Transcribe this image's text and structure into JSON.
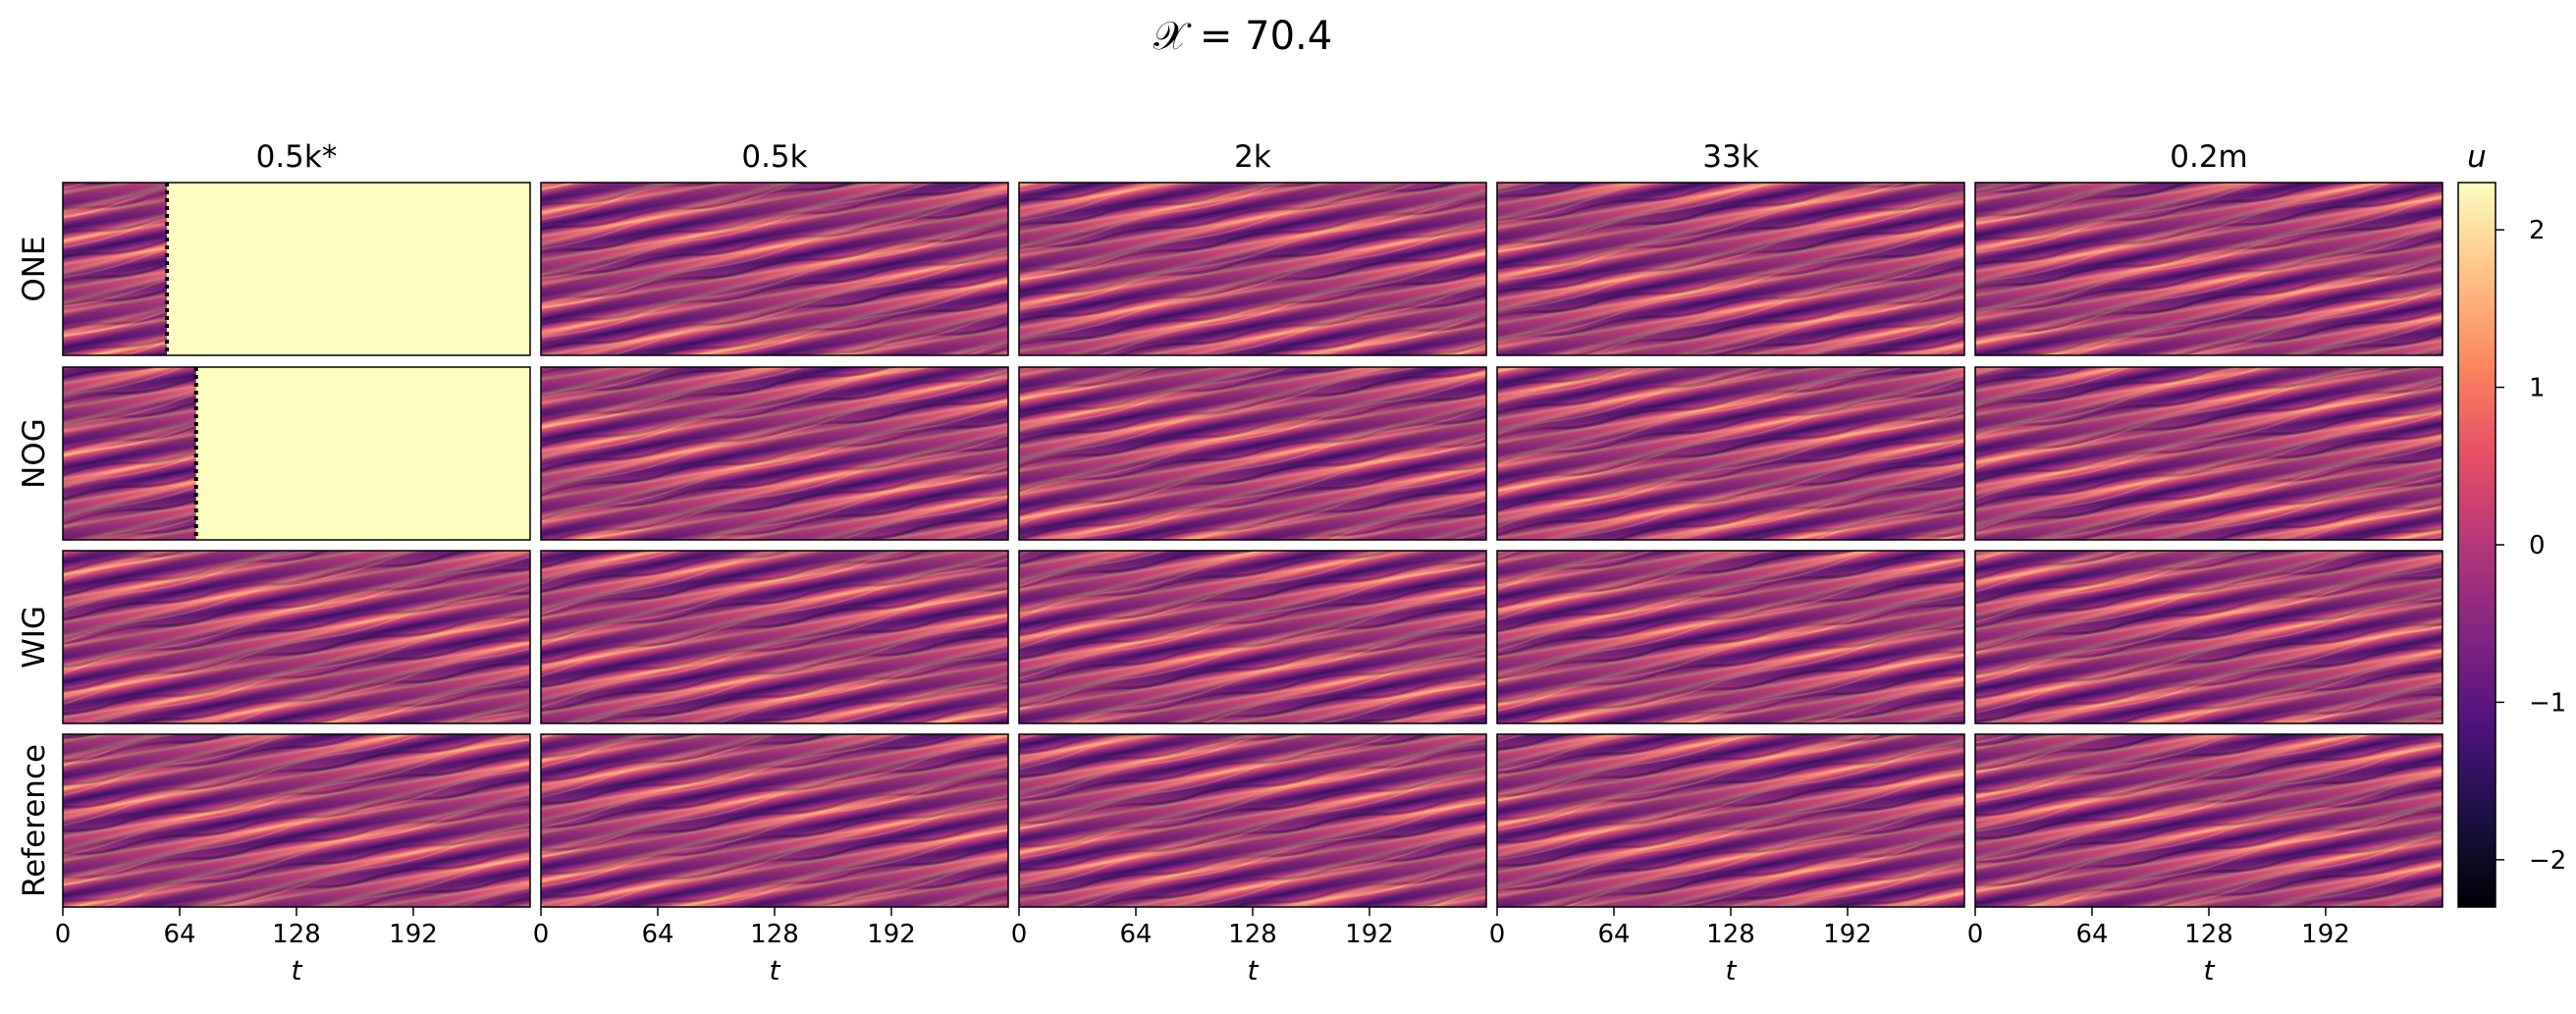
{
  "figure": {
    "title": "𝒳 = 70.4"
  },
  "chart_data": {
    "type": "heatmap",
    "title": "𝒳 = 70.4",
    "columns": [
      "0.5k*",
      "0.5k",
      "2k",
      "33k",
      "0.2m"
    ],
    "rows": [
      "ONE",
      "NOG",
      "WIG",
      "Reference"
    ],
    "xlabel": "t",
    "x_ticks": [
      0,
      64,
      128,
      192
    ],
    "xlim": [
      0,
      256
    ],
    "colorbar": {
      "label": "u",
      "ticks": [
        2,
        1,
        0,
        -1,
        -2
      ],
      "range": [
        -2.3,
        2.3
      ],
      "colormap": "magma"
    },
    "diverged_panels": [
      {
        "row": "ONE",
        "column": "0.5k*",
        "diverged_at_t": 57
      },
      {
        "row": "NOG",
        "column": "0.5k*",
        "diverged_at_t": 73
      }
    ],
    "diverged_fill_color": "#fcfdbf"
  }
}
